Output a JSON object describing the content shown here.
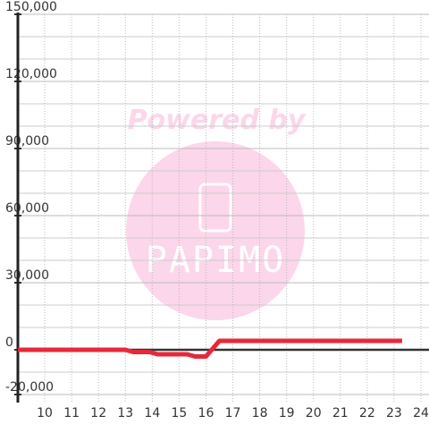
{
  "chart_data": {
    "type": "line",
    "watermark": {
      "title": "Powered by",
      "brand": "PAPIMO"
    },
    "x": [
      9,
      13,
      13.3,
      13.9,
      14.2,
      15.3,
      15.6,
      16.0,
      16.5,
      23.3
    ],
    "series": [
      {
        "color": "#e8283a",
        "values": [
          0,
          0,
          -1000,
          -1000,
          -2000,
          -2000,
          -3000,
          -3000,
          4000,
          4000
        ]
      }
    ],
    "xlim": [
      9,
      24.3
    ],
    "xticks": [
      10,
      11,
      12,
      13,
      14,
      15,
      16,
      17,
      18,
      19,
      20,
      21,
      22,
      23,
      24
    ],
    "ylim": [
      -23600,
      150000
    ],
    "yticks": [
      {
        "value": -20000,
        "label": "-20,000"
      },
      0,
      {
        "value": 30000,
        "label": "30,000"
      },
      {
        "value": 60000,
        "label": "60,000"
      },
      {
        "value": 90000,
        "label": "90,000"
      },
      {
        "value": 120000,
        "label": "120,000"
      },
      {
        "value": 150000,
        "label": "150,000"
      }
    ],
    "minor_yticks": [
      -10000,
      10000,
      20000,
      40000,
      50000,
      70000,
      80000,
      100000,
      110000,
      130000,
      140000
    ],
    "grid": true
  }
}
